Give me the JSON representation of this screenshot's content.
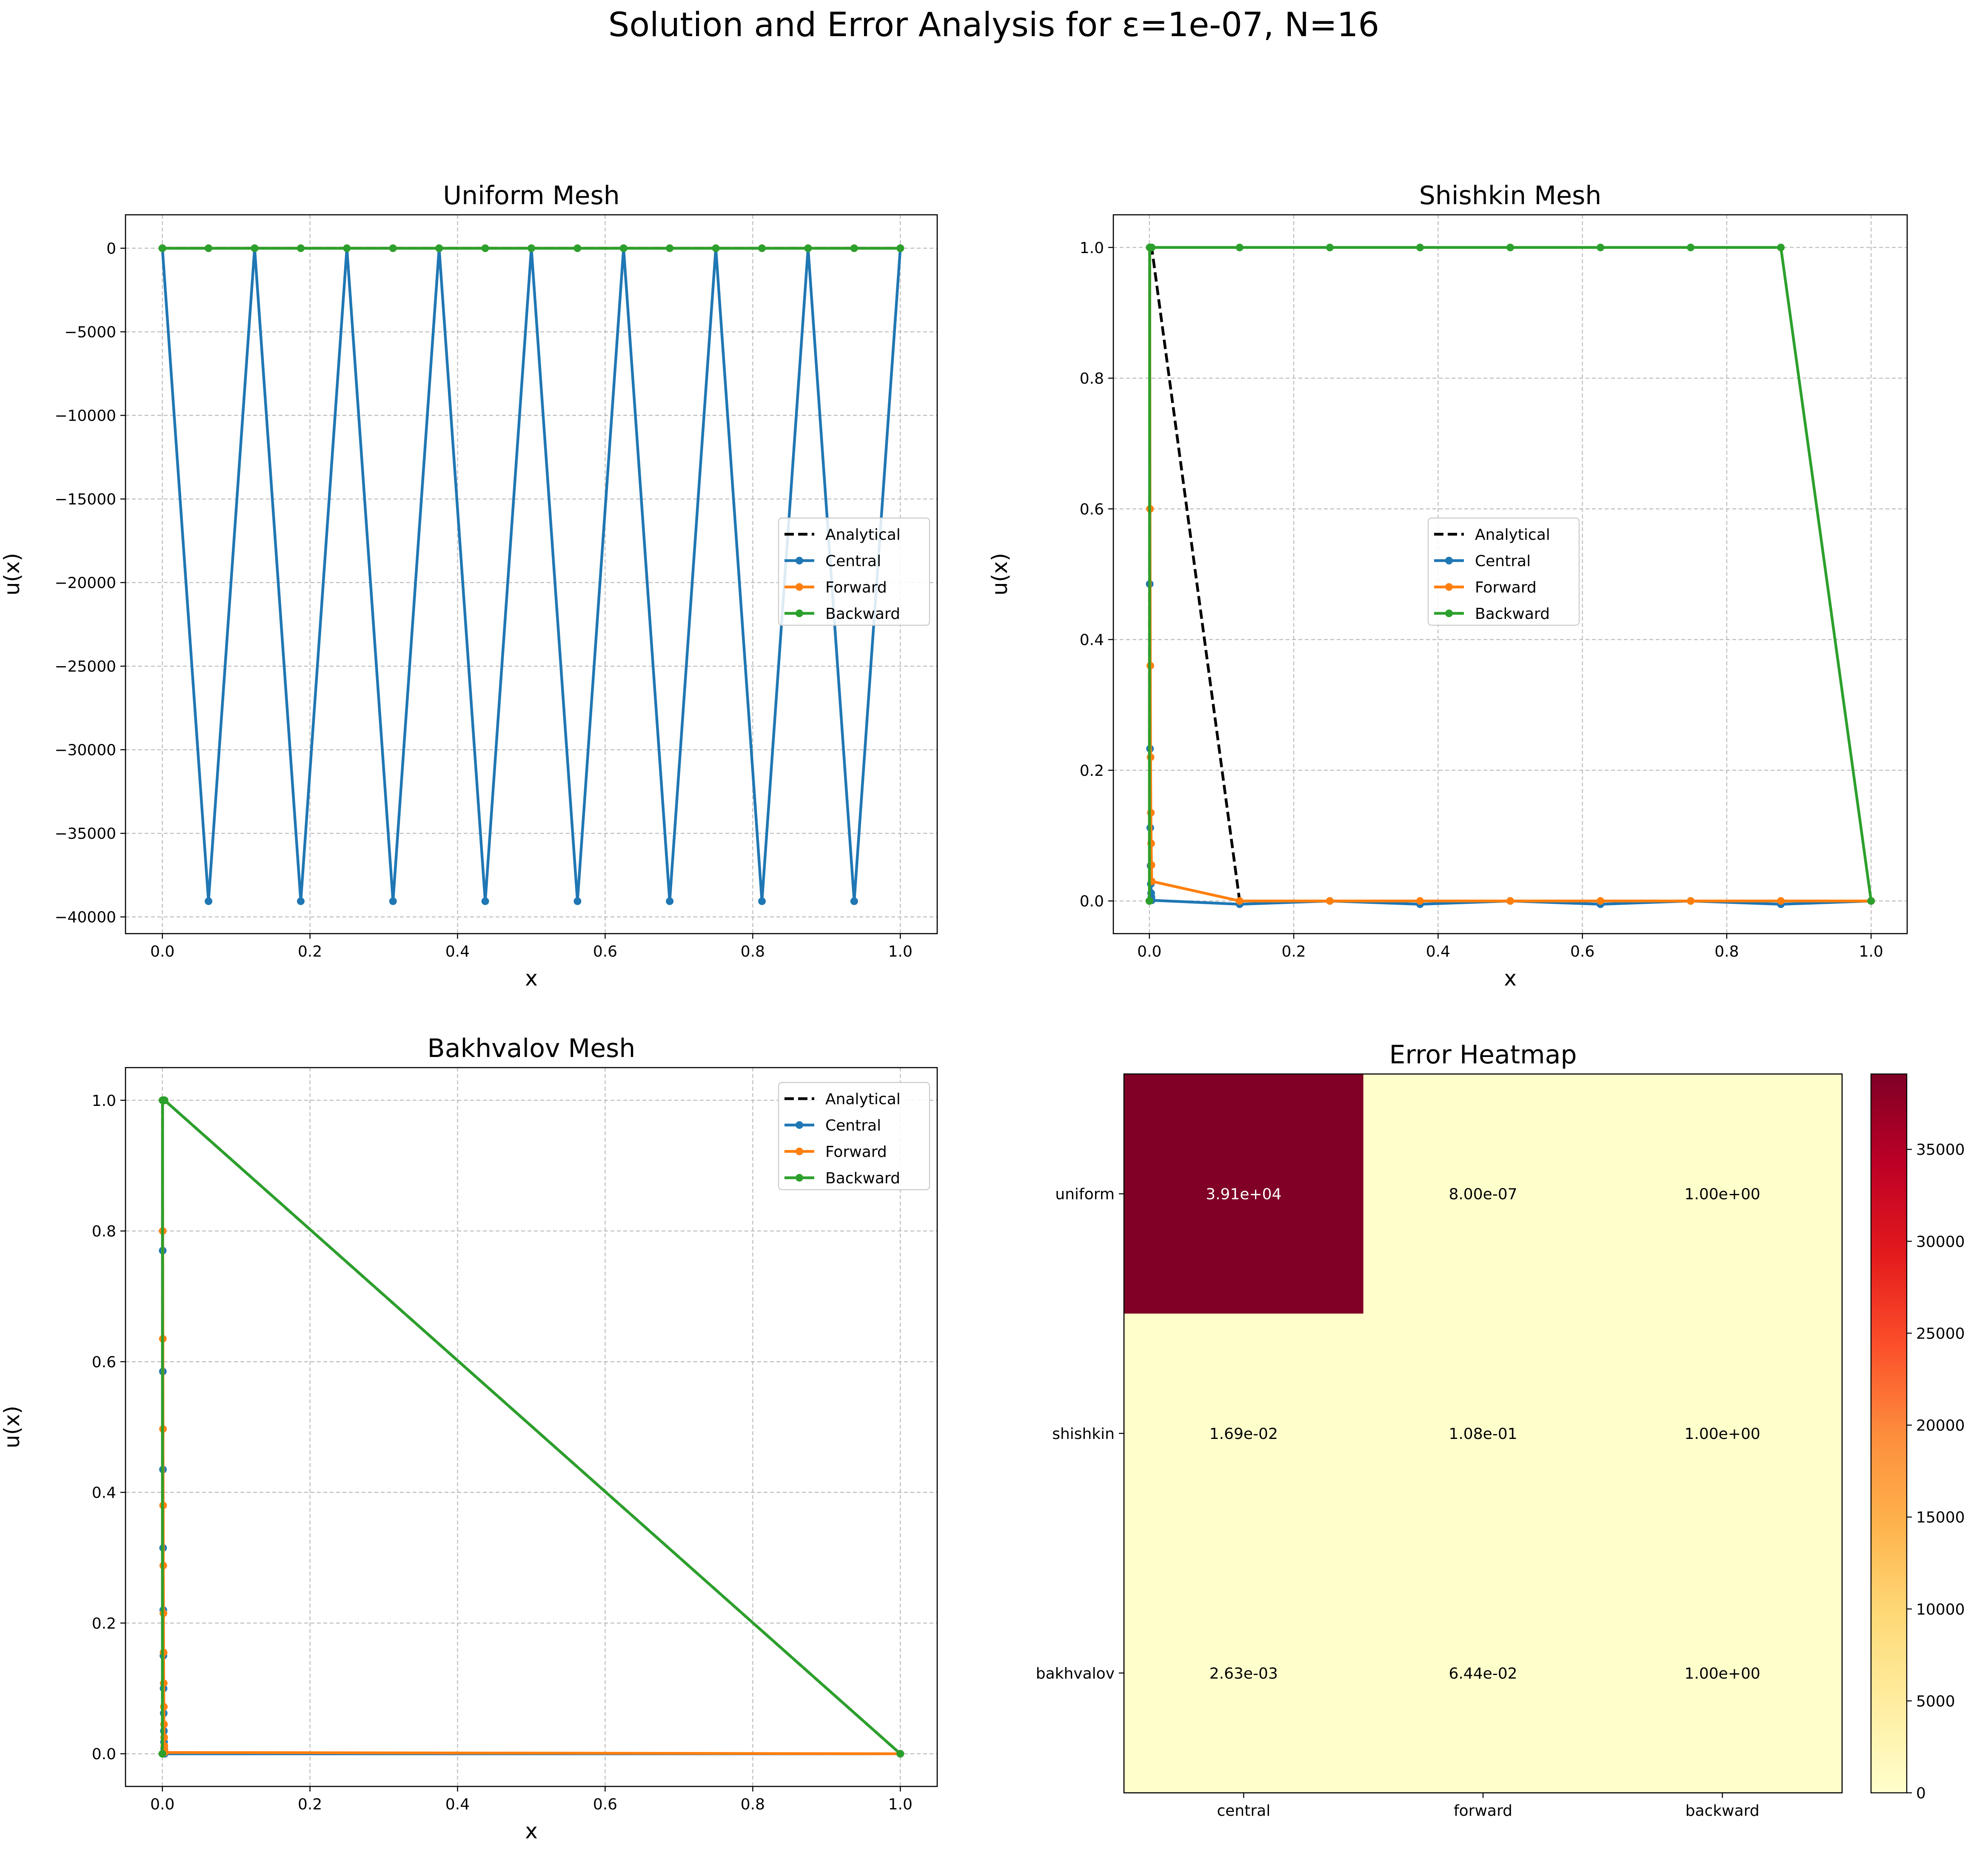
{
  "figure": {
    "suptitle": "Solution and Error Analysis for ε=1e-07, N=16",
    "colors": {
      "analytical": "#000000",
      "central": "#1f77b4",
      "forward": "#ff7f0e",
      "backward": "#2ca02c",
      "grid": "#b0b0b0"
    }
  },
  "chart_data": [
    {
      "type": "line",
      "title": "Uniform Mesh",
      "xlabel": "x",
      "ylabel": "u(x)",
      "xlim": [
        -0.05,
        1.05
      ],
      "ylim": [
        -41000,
        2000
      ],
      "xticks": [
        0.0,
        0.2,
        0.4,
        0.6,
        0.8,
        1.0
      ],
      "xtick_labels": [
        "0.0",
        "0.2",
        "0.4",
        "0.6",
        "0.8",
        "1.0"
      ],
      "yticks": [
        0,
        -5000,
        -10000,
        -15000,
        -20000,
        -25000,
        -30000,
        -35000,
        -40000
      ],
      "ytick_labels": [
        "0",
        "−5000",
        "−10000",
        "−15000",
        "−20000",
        "−25000",
        "−30000",
        "−35000",
        "−40000"
      ],
      "grid": true,
      "legend": {
        "placement": "center-right",
        "entries": [
          "Analytical",
          "Central",
          "Forward",
          "Backward"
        ]
      },
      "series": [
        {
          "name": "Analytical",
          "style": "dashed",
          "color": "#000000",
          "markers": false,
          "x": [
            0,
            0.0625,
            0.125,
            0.1875,
            0.25,
            0.3125,
            0.375,
            0.4375,
            0.5,
            0.5625,
            0.625,
            0.6875,
            0.75,
            0.8125,
            0.875,
            0.9375,
            1.0
          ],
          "y": [
            0,
            1,
            1,
            1,
            1,
            1,
            1,
            1,
            1,
            1,
            1,
            1,
            1,
            1,
            1,
            1,
            0
          ]
        },
        {
          "name": "Central",
          "style": "solid",
          "color": "#1f77b4",
          "markers": true,
          "x": [
            0,
            0.0625,
            0.125,
            0.1875,
            0.25,
            0.3125,
            0.375,
            0.4375,
            0.5,
            0.5625,
            0.625,
            0.6875,
            0.75,
            0.8125,
            0.875,
            0.9375,
            1.0
          ],
          "y": [
            0,
            -39062,
            0,
            -39062,
            0,
            -39062,
            0,
            -39062,
            0,
            -39062,
            0,
            -39062,
            0,
            -39062,
            0,
            -39062,
            0
          ]
        },
        {
          "name": "Forward",
          "style": "solid",
          "color": "#ff7f0e",
          "markers": true,
          "x": [
            0,
            0.0625,
            0.125,
            0.1875,
            0.25,
            0.3125,
            0.375,
            0.4375,
            0.5,
            0.5625,
            0.625,
            0.6875,
            0.75,
            0.8125,
            0.875,
            0.9375,
            1.0
          ],
          "y": [
            0,
            1,
            1,
            1,
            1,
            1,
            1,
            1,
            1,
            1,
            1,
            1,
            1,
            1,
            1,
            1,
            0
          ]
        },
        {
          "name": "Backward",
          "style": "solid",
          "color": "#2ca02c",
          "markers": true,
          "x": [
            0,
            0.0625,
            0.125,
            0.1875,
            0.25,
            0.3125,
            0.375,
            0.4375,
            0.5,
            0.5625,
            0.625,
            0.6875,
            0.75,
            0.8125,
            0.875,
            0.9375,
            1.0
          ],
          "y": [
            0,
            0,
            0,
            0,
            0,
            0,
            0,
            0,
            0,
            0,
            0,
            0,
            0,
            0,
            0,
            0,
            0
          ]
        }
      ]
    },
    {
      "type": "line",
      "title": "Shishkin Mesh",
      "xlabel": "x",
      "ylabel": "u(x)",
      "xlim": [
        -0.05,
        1.05
      ],
      "ylim": [
        -0.05,
        1.05
      ],
      "xticks": [
        0.0,
        0.2,
        0.4,
        0.6,
        0.8,
        1.0
      ],
      "xtick_labels": [
        "0.0",
        "0.2",
        "0.4",
        "0.6",
        "0.8",
        "1.0"
      ],
      "yticks": [
        0.0,
        0.2,
        0.4,
        0.6,
        0.8,
        1.0
      ],
      "ytick_labels": [
        "0.0",
        "0.2",
        "0.4",
        "0.6",
        "0.8",
        "1.0"
      ],
      "grid": true,
      "legend": {
        "placement": "center",
        "entries": [
          "Analytical",
          "Central",
          "Forward",
          "Backward"
        ]
      },
      "series": [
        {
          "name": "Analytical",
          "style": "dashed",
          "color": "#000000",
          "markers": false,
          "x": [
            0,
            0.0004,
            0.0008,
            0.0012,
            0.0016,
            0.002,
            0.0024,
            0.0028,
            0.0032,
            0.125,
            0.25,
            0.375,
            0.5,
            0.625,
            0.75,
            0.875,
            1.0
          ],
          "y": [
            0,
            1,
            1,
            1,
            1,
            1,
            1,
            1,
            1,
            0,
            0,
            0,
            0,
            0,
            0,
            0,
            0
          ]
        },
        {
          "name": "Central",
          "style": "solid",
          "color": "#1f77b4",
          "markers": true,
          "x": [
            0,
            0.0004,
            0.0008,
            0.0012,
            0.0016,
            0.002,
            0.0024,
            0.0028,
            0.0032,
            0.125,
            0.25,
            0.375,
            0.5,
            0.625,
            0.75,
            0.875,
            1.0
          ],
          "y": [
            0.0,
            0.485,
            0.233,
            0.112,
            0.054,
            0.026,
            0.012,
            0.006,
            0.001,
            -0.005,
            0.0,
            -0.005,
            0.0,
            -0.005,
            0.0,
            -0.005,
            0.0
          ]
        },
        {
          "name": "Forward",
          "style": "solid",
          "color": "#ff7f0e",
          "markers": true,
          "x": [
            0,
            0.0004,
            0.0008,
            0.0012,
            0.0016,
            0.002,
            0.0024,
            0.0028,
            0.0032,
            0.125,
            0.25,
            0.375,
            0.5,
            0.625,
            0.75,
            0.875,
            1.0
          ],
          "y": [
            0.0,
            1.0,
            0.6,
            0.36,
            0.22,
            0.135,
            0.088,
            0.055,
            0.03,
            0.0,
            0.0,
            0.0,
            0.0,
            0.0,
            0.0,
            0.0,
            0.0
          ]
        },
        {
          "name": "Backward",
          "style": "solid",
          "color": "#2ca02c",
          "markers": true,
          "x": [
            0,
            0.0004,
            0.0008,
            0.0012,
            0.0016,
            0.002,
            0.0024,
            0.0028,
            0.0032,
            0.125,
            0.25,
            0.375,
            0.5,
            0.625,
            0.75,
            0.875,
            1.0
          ],
          "y": [
            0,
            1,
            1,
            1,
            1,
            1,
            1,
            1,
            1,
            1,
            1,
            1,
            1,
            1,
            1,
            1,
            0
          ]
        }
      ]
    },
    {
      "type": "line",
      "title": "Bakhvalov Mesh",
      "xlabel": "x",
      "ylabel": "u(x)",
      "xlim": [
        -0.05,
        1.05
      ],
      "ylim": [
        -0.05,
        1.05
      ],
      "xticks": [
        0.0,
        0.2,
        0.4,
        0.6,
        0.8,
        1.0
      ],
      "xtick_labels": [
        "0.0",
        "0.2",
        "0.4",
        "0.6",
        "0.8",
        "1.0"
      ],
      "yticks": [
        0.0,
        0.2,
        0.4,
        0.6,
        0.8,
        1.0
      ],
      "ytick_labels": [
        "0.0",
        "0.2",
        "0.4",
        "0.6",
        "0.8",
        "1.0"
      ],
      "grid": true,
      "legend": {
        "placement": "top-right",
        "entries": [
          "Analytical",
          "Central",
          "Forward",
          "Backward"
        ]
      },
      "series": [
        {
          "name": "Analytical",
          "style": "dashed",
          "color": "#000000",
          "markers": false,
          "x": [
            0,
            0.0002,
            0.0004,
            0.0006,
            0.0008,
            0.001,
            0.0012,
            0.0014,
            0.0016,
            0.0018,
            0.002,
            0.0022,
            0.0024,
            0.0026,
            0.0028,
            0.003,
            1.0
          ],
          "y": [
            0,
            1,
            1,
            1,
            1,
            1,
            1,
            1,
            1,
            1,
            1,
            1,
            1,
            1,
            1,
            1,
            0
          ]
        },
        {
          "name": "Central",
          "style": "solid",
          "color": "#1f77b4",
          "markers": true,
          "x": [
            0,
            0.0002,
            0.0004,
            0.0006,
            0.0008,
            0.001,
            0.0012,
            0.0014,
            0.0016,
            0.0018,
            0.002,
            0.0022,
            0.0024,
            0.0026,
            0.0028,
            0.003,
            1.0
          ],
          "y": [
            0.0,
            1.0,
            0.77,
            0.585,
            0.435,
            0.315,
            0.22,
            0.15,
            0.1,
            0.062,
            0.035,
            0.018,
            0.008,
            0.003,
            0.001,
            0.0,
            0.0
          ]
        },
        {
          "name": "Forward",
          "style": "solid",
          "color": "#ff7f0e",
          "markers": true,
          "x": [
            0,
            0.0002,
            0.0004,
            0.0006,
            0.0008,
            0.001,
            0.0012,
            0.0014,
            0.0016,
            0.0018,
            0.002,
            0.0022,
            0.0024,
            0.0026,
            0.0028,
            0.003,
            1.0
          ],
          "y": [
            0.0,
            1.0,
            0.8,
            0.635,
            0.497,
            0.38,
            0.288,
            0.215,
            0.155,
            0.108,
            0.072,
            0.045,
            0.025,
            0.012,
            0.005,
            0.002,
            0.0
          ]
        },
        {
          "name": "Backward",
          "style": "solid",
          "color": "#2ca02c",
          "markers": true,
          "x": [
            0,
            0.0002,
            0.0004,
            0.0006,
            0.0008,
            0.001,
            0.0012,
            0.0014,
            0.0016,
            0.0018,
            0.002,
            0.0022,
            0.0024,
            0.0026,
            0.0028,
            0.003,
            1.0
          ],
          "y": [
            0,
            1,
            1,
            1,
            1,
            1,
            1,
            1,
            1,
            1,
            1,
            1,
            1,
            1,
            1,
            1,
            0
          ]
        }
      ]
    },
    {
      "type": "heatmap",
      "title": "Error Heatmap",
      "rows": [
        "uniform",
        "shishkin",
        "bakhvalov"
      ],
      "columns": [
        "central",
        "forward",
        "backward"
      ],
      "values": [
        [
          39100,
          8e-07,
          1.0
        ],
        [
          0.0169,
          0.108,
          1.0
        ],
        [
          0.00263,
          0.0644,
          1.0
        ]
      ],
      "cell_labels": [
        [
          "3.91e+04",
          "8.00e-07",
          "1.00e+00"
        ],
        [
          "1.69e-02",
          "1.08e-01",
          "1.00e+00"
        ],
        [
          "2.63e-03",
          "6.44e-02",
          "1.00e+00"
        ]
      ],
      "colormap": "YlOrRd",
      "colormap_stops": [
        "#ffffcc",
        "#ffeda0",
        "#fed976",
        "#feb24c",
        "#fd8d3c",
        "#fc4e2a",
        "#e31a1c",
        "#bd0026",
        "#800026"
      ],
      "vmin": 0,
      "vmax": 39100,
      "colorbar_ticks": [
        0,
        5000,
        10000,
        15000,
        20000,
        25000,
        30000,
        35000
      ],
      "colorbar_tick_labels": [
        "0",
        "5000",
        "10000",
        "15000",
        "20000",
        "25000",
        "30000",
        "35000"
      ]
    }
  ]
}
